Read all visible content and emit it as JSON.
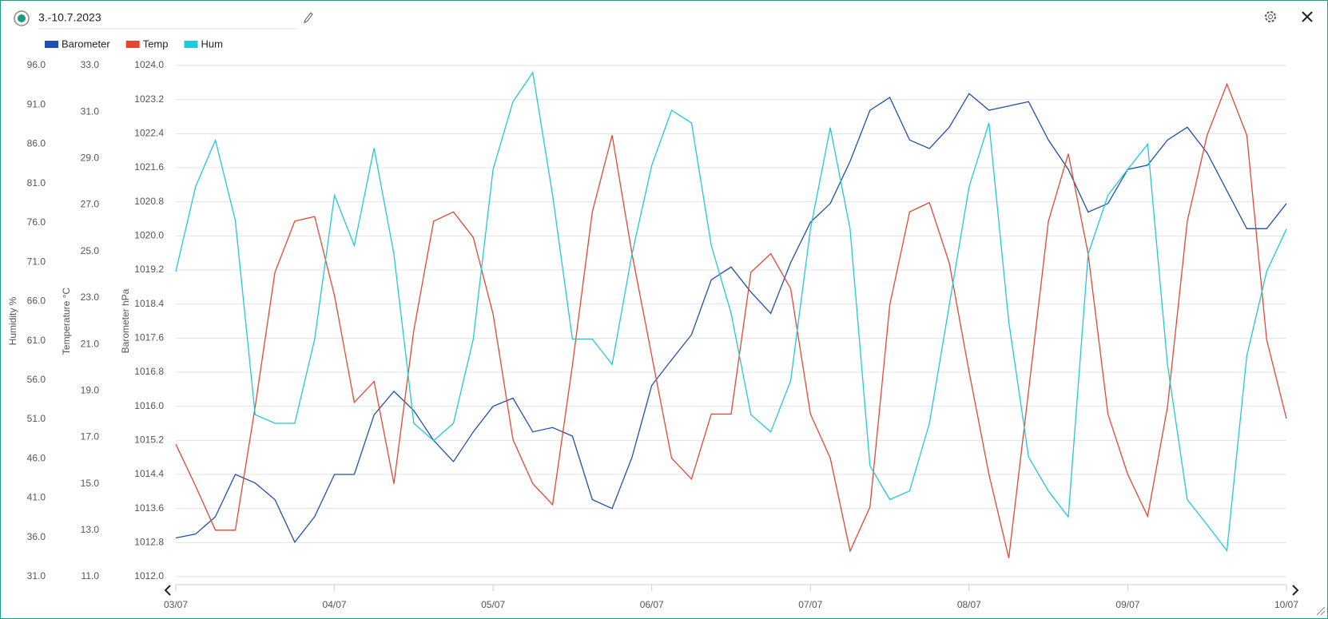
{
  "header": {
    "title": "3.-10.7.2023"
  },
  "chart_data": {
    "type": "line",
    "y_label": "Barometer hPa",
    "y2_label": "Temperature °C",
    "y3_label": "Humidity %",
    "x": [
      0,
      0.125,
      0.25,
      0.375,
      0.5,
      0.625,
      0.75,
      0.875,
      1,
      1.125,
      1.25,
      1.375,
      1.5,
      1.625,
      1.75,
      1.875,
      2,
      2.125,
      2.25,
      2.375,
      2.5,
      2.625,
      2.75,
      2.875,
      3,
      3.125,
      3.25,
      3.375,
      3.5,
      3.625,
      3.75,
      3.875,
      4,
      4.125,
      4.25,
      4.375,
      4.5,
      4.625,
      4.75,
      4.875,
      5,
      5.125,
      5.25,
      5.375,
      5.5,
      5.625,
      5.75,
      5.875,
      6,
      6.125,
      6.25,
      6.375,
      6.5,
      6.625,
      6.75,
      6.875,
      7
    ],
    "xlim": [
      0,
      7
    ],
    "xticks": [
      {
        "value": 0,
        "label": "03/07"
      },
      {
        "value": 1,
        "label": "04/07"
      },
      {
        "value": 2,
        "label": "05/07"
      },
      {
        "value": 3,
        "label": "06/07"
      },
      {
        "value": 4,
        "label": "07/07"
      },
      {
        "value": 5,
        "label": "08/07"
      },
      {
        "value": 6,
        "label": "09/07"
      },
      {
        "value": 7,
        "label": "10/07"
      }
    ],
    "ylim": [
      1012,
      1024
    ],
    "yticks": [
      {
        "value": 1012,
        "label": "1012.0"
      },
      1012.8,
      1013.6,
      1014.4,
      1015.2,
      {
        "value": 1016,
        "label": "1016.0"
      },
      1016.8,
      1017.6,
      1018.4,
      1019.2,
      {
        "value": 1020,
        "label": "1020.0"
      },
      1020.8,
      1021.6,
      1022.4,
      1023.2,
      {
        "value": 1024,
        "label": "1024.0"
      }
    ],
    "y2lim": [
      11,
      33
    ],
    "y2ticks": [
      {
        "value": 11,
        "label": "11.0"
      },
      {
        "value": 13,
        "label": "13.0"
      },
      {
        "value": 15,
        "label": "15.0"
      },
      {
        "value": 17,
        "label": "17.0"
      },
      {
        "value": 19,
        "label": "19.0"
      },
      {
        "value": 21,
        "label": "21.0"
      },
      {
        "value": 23,
        "label": "23.0"
      },
      {
        "value": 25,
        "label": "25.0"
      },
      {
        "value": 27,
        "label": "27.0"
      },
      {
        "value": 29,
        "label": "29.0"
      },
      {
        "value": 31,
        "label": "31.0"
      },
      {
        "value": 33,
        "label": "33.0"
      }
    ],
    "y3lim": [
      31,
      96
    ],
    "y3ticks": [
      {
        "value": 31,
        "label": "31.0"
      },
      {
        "value": 36,
        "label": "36.0"
      },
      {
        "value": 41,
        "label": "41.0"
      },
      {
        "value": 46,
        "label": "46.0"
      },
      {
        "value": 51,
        "label": "51.0"
      },
      {
        "value": 56,
        "label": "56.0"
      },
      {
        "value": 61,
        "label": "61.0"
      },
      {
        "value": 66,
        "label": "66.0"
      },
      {
        "value": 71,
        "label": "71.0"
      },
      {
        "value": 76,
        "label": "76.0"
      },
      {
        "value": 81,
        "label": "81.0"
      },
      {
        "value": 86,
        "label": "86.0"
      },
      {
        "value": 91,
        "label": "91.0"
      },
      {
        "value": 96,
        "label": "96.0"
      }
    ],
    "grid": true,
    "series": [
      {
        "name": "Barometer",
        "color": "#1f4fb0",
        "axis": "y",
        "values": [
          1012.91,
          1013.0,
          1013.41,
          1014.4,
          1014.2,
          1013.81,
          1012.81,
          1013.41,
          1014.4,
          1014.4,
          1015.8,
          1016.35,
          1015.9,
          1015.2,
          1014.7,
          1015.4,
          1016.0,
          1016.19,
          1015.4,
          1015.5,
          1015.3,
          1013.81,
          1013.6,
          1014.8,
          1016.49,
          1017.09,
          1017.68,
          1018.97,
          1019.27,
          1018.68,
          1018.18,
          1019.37,
          1020.32,
          1020.76,
          1021.75,
          1022.95,
          1023.25,
          1022.25,
          1022.05,
          1022.55,
          1023.34,
          1022.95,
          1023.05,
          1023.15,
          1022.25,
          1021.56,
          1020.56,
          1020.76,
          1021.56,
          1021.66,
          1022.25,
          1022.55,
          1021.95,
          1021.06,
          1020.17,
          1020.17,
          1020.76
        ]
      },
      {
        "name": "Temp",
        "color": "#e8452f",
        "axis": "y2",
        "values": [
          16.7,
          14.9,
          13.0,
          13.0,
          18.3,
          24.1,
          26.3,
          26.5,
          23.1,
          18.5,
          19.4,
          15.0,
          21.6,
          26.3,
          26.7,
          25.6,
          22.3,
          16.9,
          15.0,
          14.1,
          20.1,
          26.7,
          30.0,
          24.9,
          20.5,
          16.1,
          15.2,
          18.0,
          18.0,
          24.1,
          24.9,
          23.4,
          18.0,
          16.1,
          12.1,
          14.0,
          22.7,
          26.7,
          27.1,
          24.5,
          19.8,
          15.4,
          11.8,
          19.0,
          26.3,
          29.2,
          24.9,
          18.0,
          15.4,
          13.6,
          18.3,
          26.3,
          30.0,
          32.2,
          30.0,
          21.2,
          17.8
        ]
      },
      {
        "name": "Hum",
        "color": "#1ec8e0",
        "axis": "y3",
        "values": [
          69.8,
          80.6,
          86.5,
          76.3,
          51.6,
          50.5,
          50.5,
          61.2,
          79.5,
          73.1,
          85.5,
          72.0,
          50.5,
          48.3,
          50.5,
          61.2,
          82.8,
          91.4,
          95.1,
          79.5,
          61.2,
          61.2,
          58.0,
          72.0,
          83.3,
          90.3,
          88.7,
          73.1,
          64.5,
          51.6,
          49.4,
          55.9,
          75.2,
          88.1,
          75.2,
          45.1,
          40.8,
          41.9,
          50.5,
          65.5,
          80.6,
          88.7,
          63.4,
          46.2,
          41.9,
          38.6,
          72.0,
          79.5,
          82.8,
          86.0,
          58.0,
          40.8,
          37.6,
          34.3,
          59.1,
          69.8,
          75.2
        ]
      }
    ]
  }
}
